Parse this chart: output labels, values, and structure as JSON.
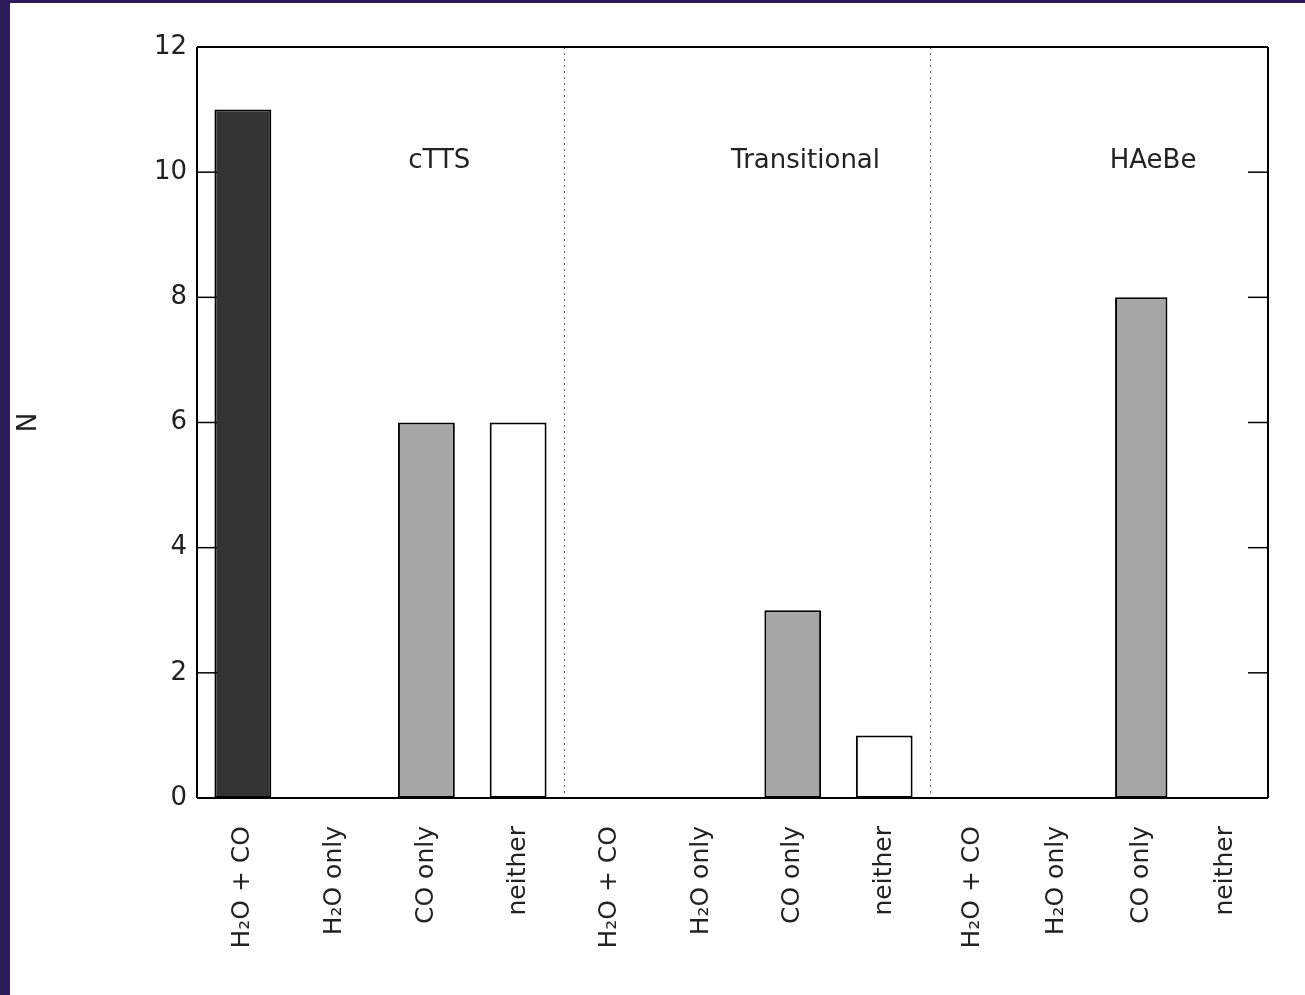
{
  "chart_data": [
    {
      "type": "bar",
      "categories": [
        "H₂O + CO",
        "H₂O only",
        "CO only",
        "neither"
      ],
      "values": [
        11,
        0,
        6,
        6
      ],
      "colors": [
        "#333333",
        "#ffffff",
        "#a6a6a6",
        "#ffffff"
      ],
      "ylim": [
        0,
        12
      ],
      "yticks": [
        0,
        2,
        4,
        6,
        8,
        10,
        12
      ],
      "ylabel": "N",
      "annotations": [
        "cTTS"
      ],
      "grid": false,
      "legend": false
    },
    {
      "type": "bar",
      "categories": [
        "H₂O + CO",
        "H₂O only",
        "CO only",
        "neither"
      ],
      "values": [
        0,
        0,
        3,
        1
      ],
      "colors": [
        "#333333",
        "#ffffff",
        "#a6a6a6",
        "#ffffff"
      ],
      "ylim": [
        0,
        12
      ],
      "yticks": [
        0,
        2,
        4,
        6,
        8,
        10,
        12
      ],
      "annotations": [
        "Transitional"
      ],
      "grid": false,
      "legend": false,
      "tick_labels": "x"
    },
    {
      "type": "bar",
      "categories": [
        "H₂O + CO",
        "H₂O only",
        "CO only",
        "neither"
      ],
      "values": [
        0,
        0,
        8,
        0
      ],
      "colors": [
        "#333333",
        "#ffffff",
        "#a6a6a6",
        "#ffffff"
      ],
      "ylim": [
        0,
        12
      ],
      "yticks": [
        0,
        2,
        4,
        6,
        8,
        10,
        12
      ],
      "annotations": [
        "HAeBe"
      ],
      "grid": false,
      "legend": false,
      "tick_labels": "x"
    }
  ]
}
